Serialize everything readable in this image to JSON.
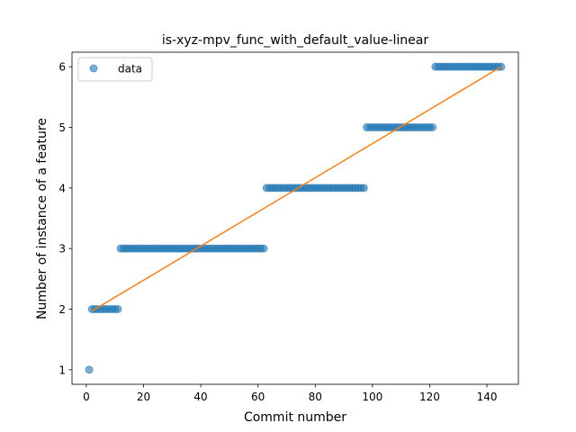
{
  "chart_data": {
    "type": "scatter",
    "title": "is-xyz-mpv_func_with_default_value-linear",
    "xlabel": "Commit number",
    "ylabel": "Number of instance of a feature",
    "xlim": [
      -5,
      151
    ],
    "ylim": [
      0.76,
      6.24
    ],
    "xticks": [
      0,
      20,
      40,
      60,
      80,
      100,
      120,
      140
    ],
    "yticks": [
      1,
      2,
      3,
      4,
      5,
      6
    ],
    "grid": false,
    "legend": {
      "placement": "top-left",
      "entries": [
        "data"
      ]
    },
    "series": [
      {
        "name": "data",
        "kind": "scatter",
        "color": "#1f77b4",
        "segments": [
          {
            "y": 1,
            "x_start": 1,
            "x_end": 1
          },
          {
            "y": 2,
            "x_start": 2,
            "x_end": 11
          },
          {
            "y": 3,
            "x_start": 12,
            "x_end": 62
          },
          {
            "y": 4,
            "x_start": 63,
            "x_end": 97
          },
          {
            "y": 5,
            "x_start": 98,
            "x_end": 121
          },
          {
            "y": 6,
            "x_start": 122,
            "x_end": 145
          }
        ]
      },
      {
        "kind": "line",
        "color": "#ff7f0e",
        "x": [
          2,
          145
        ],
        "y": [
          1.97,
          6.0
        ]
      }
    ]
  }
}
